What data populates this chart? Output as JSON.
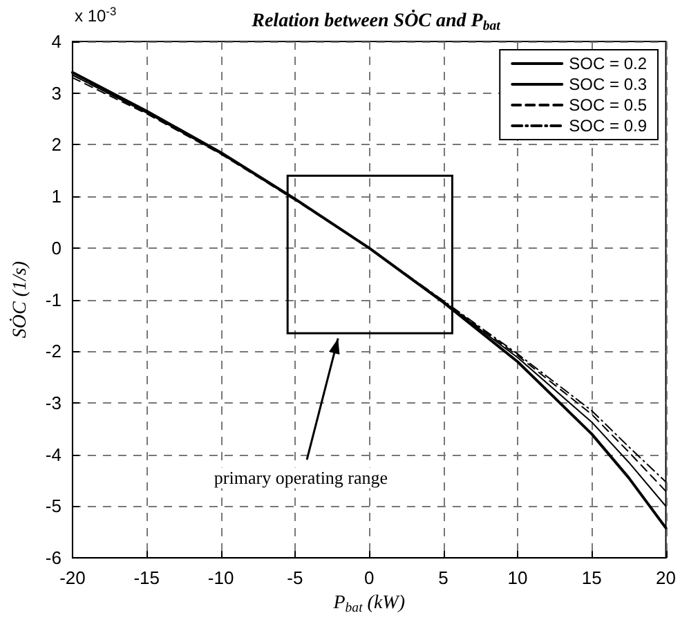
{
  "chart_data": {
    "type": "line",
    "title": "Relation between SȮC and P$_{bat}$",
    "xlabel": "P$_{bat}$ (kW)",
    "ylabel": "SȮC (1/s)",
    "annotations": [
      "x 10$^{-3}$",
      "primary operating range"
    ],
    "x": [
      -20,
      -15,
      -10,
      -5,
      0,
      5,
      10,
      15,
      17.5,
      20
    ],
    "series": [
      {
        "name": "SOC = 0.2",
        "color": "#000000",
        "line_style": "solid",
        "values": [
          3.4,
          2.65,
          1.85,
          0.95,
          0,
          -1.05,
          -2.2,
          -3.6,
          -4.45,
          -5.42
        ]
      },
      {
        "name": "SOC = 0.3",
        "color": "#000000",
        "line_style": "solid",
        "values": [
          3.35,
          2.62,
          1.83,
          0.94,
          0,
          -1.04,
          -2.12,
          -3.37,
          -4.15,
          -5.0
        ]
      },
      {
        "name": "SOC = 0.5",
        "color": "#000000",
        "line_style": "dashed",
        "values": [
          3.3,
          2.6,
          1.82,
          0.93,
          0,
          -1.03,
          -2.08,
          -3.22,
          -3.95,
          -4.71
        ]
      },
      {
        "name": "SOC = 0.9",
        "color": "#000000",
        "line_style": "dashdot",
        "values": [
          3.35,
          2.62,
          1.83,
          0.94,
          0,
          -1.02,
          -2.05,
          -3.15,
          -3.85,
          -4.53
        ]
      }
    ],
    "xlim": [
      -20,
      20
    ],
    "xticks": [
      -20,
      -15,
      -10,
      -5,
      0,
      5,
      10,
      15,
      20
    ],
    "ylim": [
      -6,
      4
    ],
    "yticks": [
      -6,
      -5,
      -4,
      -3,
      -2,
      -1,
      0,
      1,
      2,
      3,
      4
    ],
    "grid": true,
    "legend": "top right",
    "marker": "none"
  }
}
